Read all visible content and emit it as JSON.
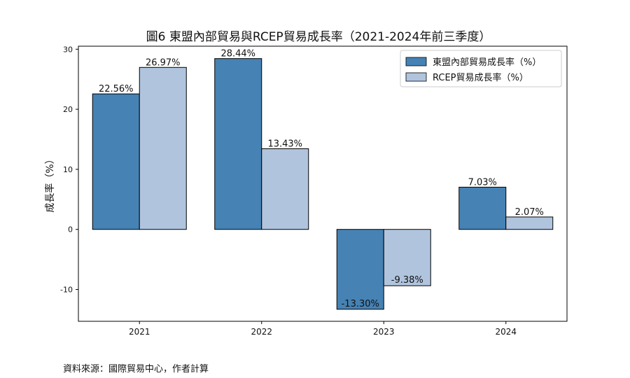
{
  "chart_data": {
    "type": "bar",
    "title": "圖6  東盟內部貿易與RCEP貿易成長率（2021-2024年前三季度）",
    "ylabel": "成長率（%）",
    "xlabel": "",
    "categories": [
      "2021",
      "2022",
      "2023",
      "2024"
    ],
    "series": [
      {
        "name": "東盟內部貿易成長率（%）",
        "values": [
          22.56,
          28.44,
          -13.3,
          7.03
        ],
        "labels": [
          "22.56%",
          "28.44%",
          "-13.30%",
          "7.03%"
        ],
        "color": "#4682B4"
      },
      {
        "name": "RCEP貿易成長率（%）",
        "values": [
          26.97,
          13.43,
          -9.38,
          2.07
        ],
        "labels": [
          "26.97%",
          "13.43%",
          "-9.38%",
          "2.07%"
        ],
        "color": "#B0C4DE"
      }
    ],
    "ylim": [
      -15.3,
      30.5
    ],
    "yticks": [
      30,
      20,
      10,
      0,
      -10
    ],
    "ytick_labels": [
      "30",
      "20",
      "10",
      "0",
      "-10"
    ],
    "grid": false,
    "legend_position": "top-right"
  },
  "source_text": "資料來源：國際貿易中心，作者計算"
}
